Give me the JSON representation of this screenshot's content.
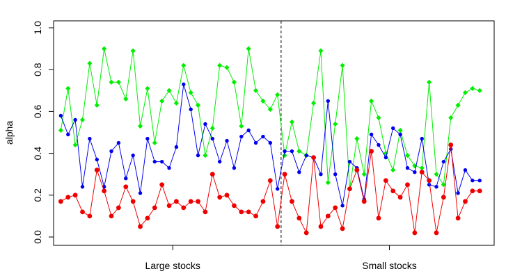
{
  "chart_data": {
    "type": "line",
    "ylabel": "alpha",
    "ylim": [
      0,
      1
    ],
    "xlim": [
      -1,
      60
    ],
    "yticks": [
      "0.0",
      "0.2",
      "0.4",
      "0.6",
      "0.8",
      "1.0"
    ],
    "groups": [
      {
        "label": "Large stocks",
        "center": 15.5
      },
      {
        "label": "Small stocks",
        "center": 45.5
      }
    ],
    "divider_x": 30.5,
    "grid": false,
    "legend": "none",
    "series": [
      {
        "color": "#00ee00",
        "marker": "diamond",
        "values": [
          0.51,
          0.71,
          0.44,
          0.56,
          0.83,
          0.63,
          0.9,
          0.74,
          0.74,
          0.66,
          0.89,
          0.53,
          0.71,
          0.45,
          0.65,
          0.7,
          0.64,
          0.82,
          0.69,
          0.63,
          0.39,
          0.52,
          0.82,
          0.81,
          0.74,
          0.53,
          0.9,
          0.7,
          0.65,
          0.61,
          0.68,
          0.39,
          0.55,
          0.41,
          0.39,
          0.64,
          0.89,
          0.26,
          0.54,
          0.82,
          0.23,
          0.47,
          0.3,
          0.65,
          0.57,
          0.4,
          0.32,
          0.51,
          0.39,
          0.34,
          0.33,
          0.74,
          0.3,
          0.25,
          0.57,
          0.63,
          0.69,
          0.71,
          0.7
        ]
      },
      {
        "color": "#0000ee",
        "marker": "circle",
        "values": [
          0.58,
          0.49,
          0.56,
          0.24,
          0.47,
          0.37,
          0.24,
          0.41,
          0.45,
          0.28,
          0.39,
          0.21,
          0.47,
          0.36,
          0.36,
          0.33,
          0.43,
          0.73,
          0.61,
          0.39,
          0.54,
          0.47,
          0.36,
          0.46,
          0.33,
          0.48,
          0.51,
          0.45,
          0.48,
          0.45,
          0.23,
          0.41,
          0.41,
          0.31,
          0.39,
          0.38,
          0.3,
          0.65,
          0.3,
          0.15,
          0.36,
          0.33,
          0.18,
          0.49,
          0.44,
          0.38,
          0.52,
          0.49,
          0.33,
          0.31,
          0.47,
          0.25,
          0.24,
          0.36,
          0.42,
          0.21,
          0.32,
          0.27,
          0.27
        ]
      },
      {
        "color": "#ee0000",
        "marker": "circle",
        "values": [
          0.17,
          0.19,
          0.2,
          0.12,
          0.1,
          0.32,
          0.22,
          0.1,
          0.14,
          0.24,
          0.17,
          0.05,
          0.09,
          0.14,
          0.25,
          0.15,
          0.17,
          0.14,
          0.17,
          0.17,
          0.12,
          0.3,
          0.19,
          0.2,
          0.15,
          0.12,
          0.12,
          0.1,
          0.17,
          0.27,
          0.05,
          0.3,
          0.17,
          0.09,
          0.02,
          0.38,
          0.05,
          0.1,
          0.14,
          0.04,
          0.23,
          0.32,
          0.17,
          0.41,
          0.09,
          0.27,
          0.22,
          0.19,
          0.25,
          0.02,
          0.31,
          0.27,
          0.02,
          0.19,
          0.44,
          0.09,
          0.17,
          0.22,
          0.22
        ]
      }
    ]
  }
}
